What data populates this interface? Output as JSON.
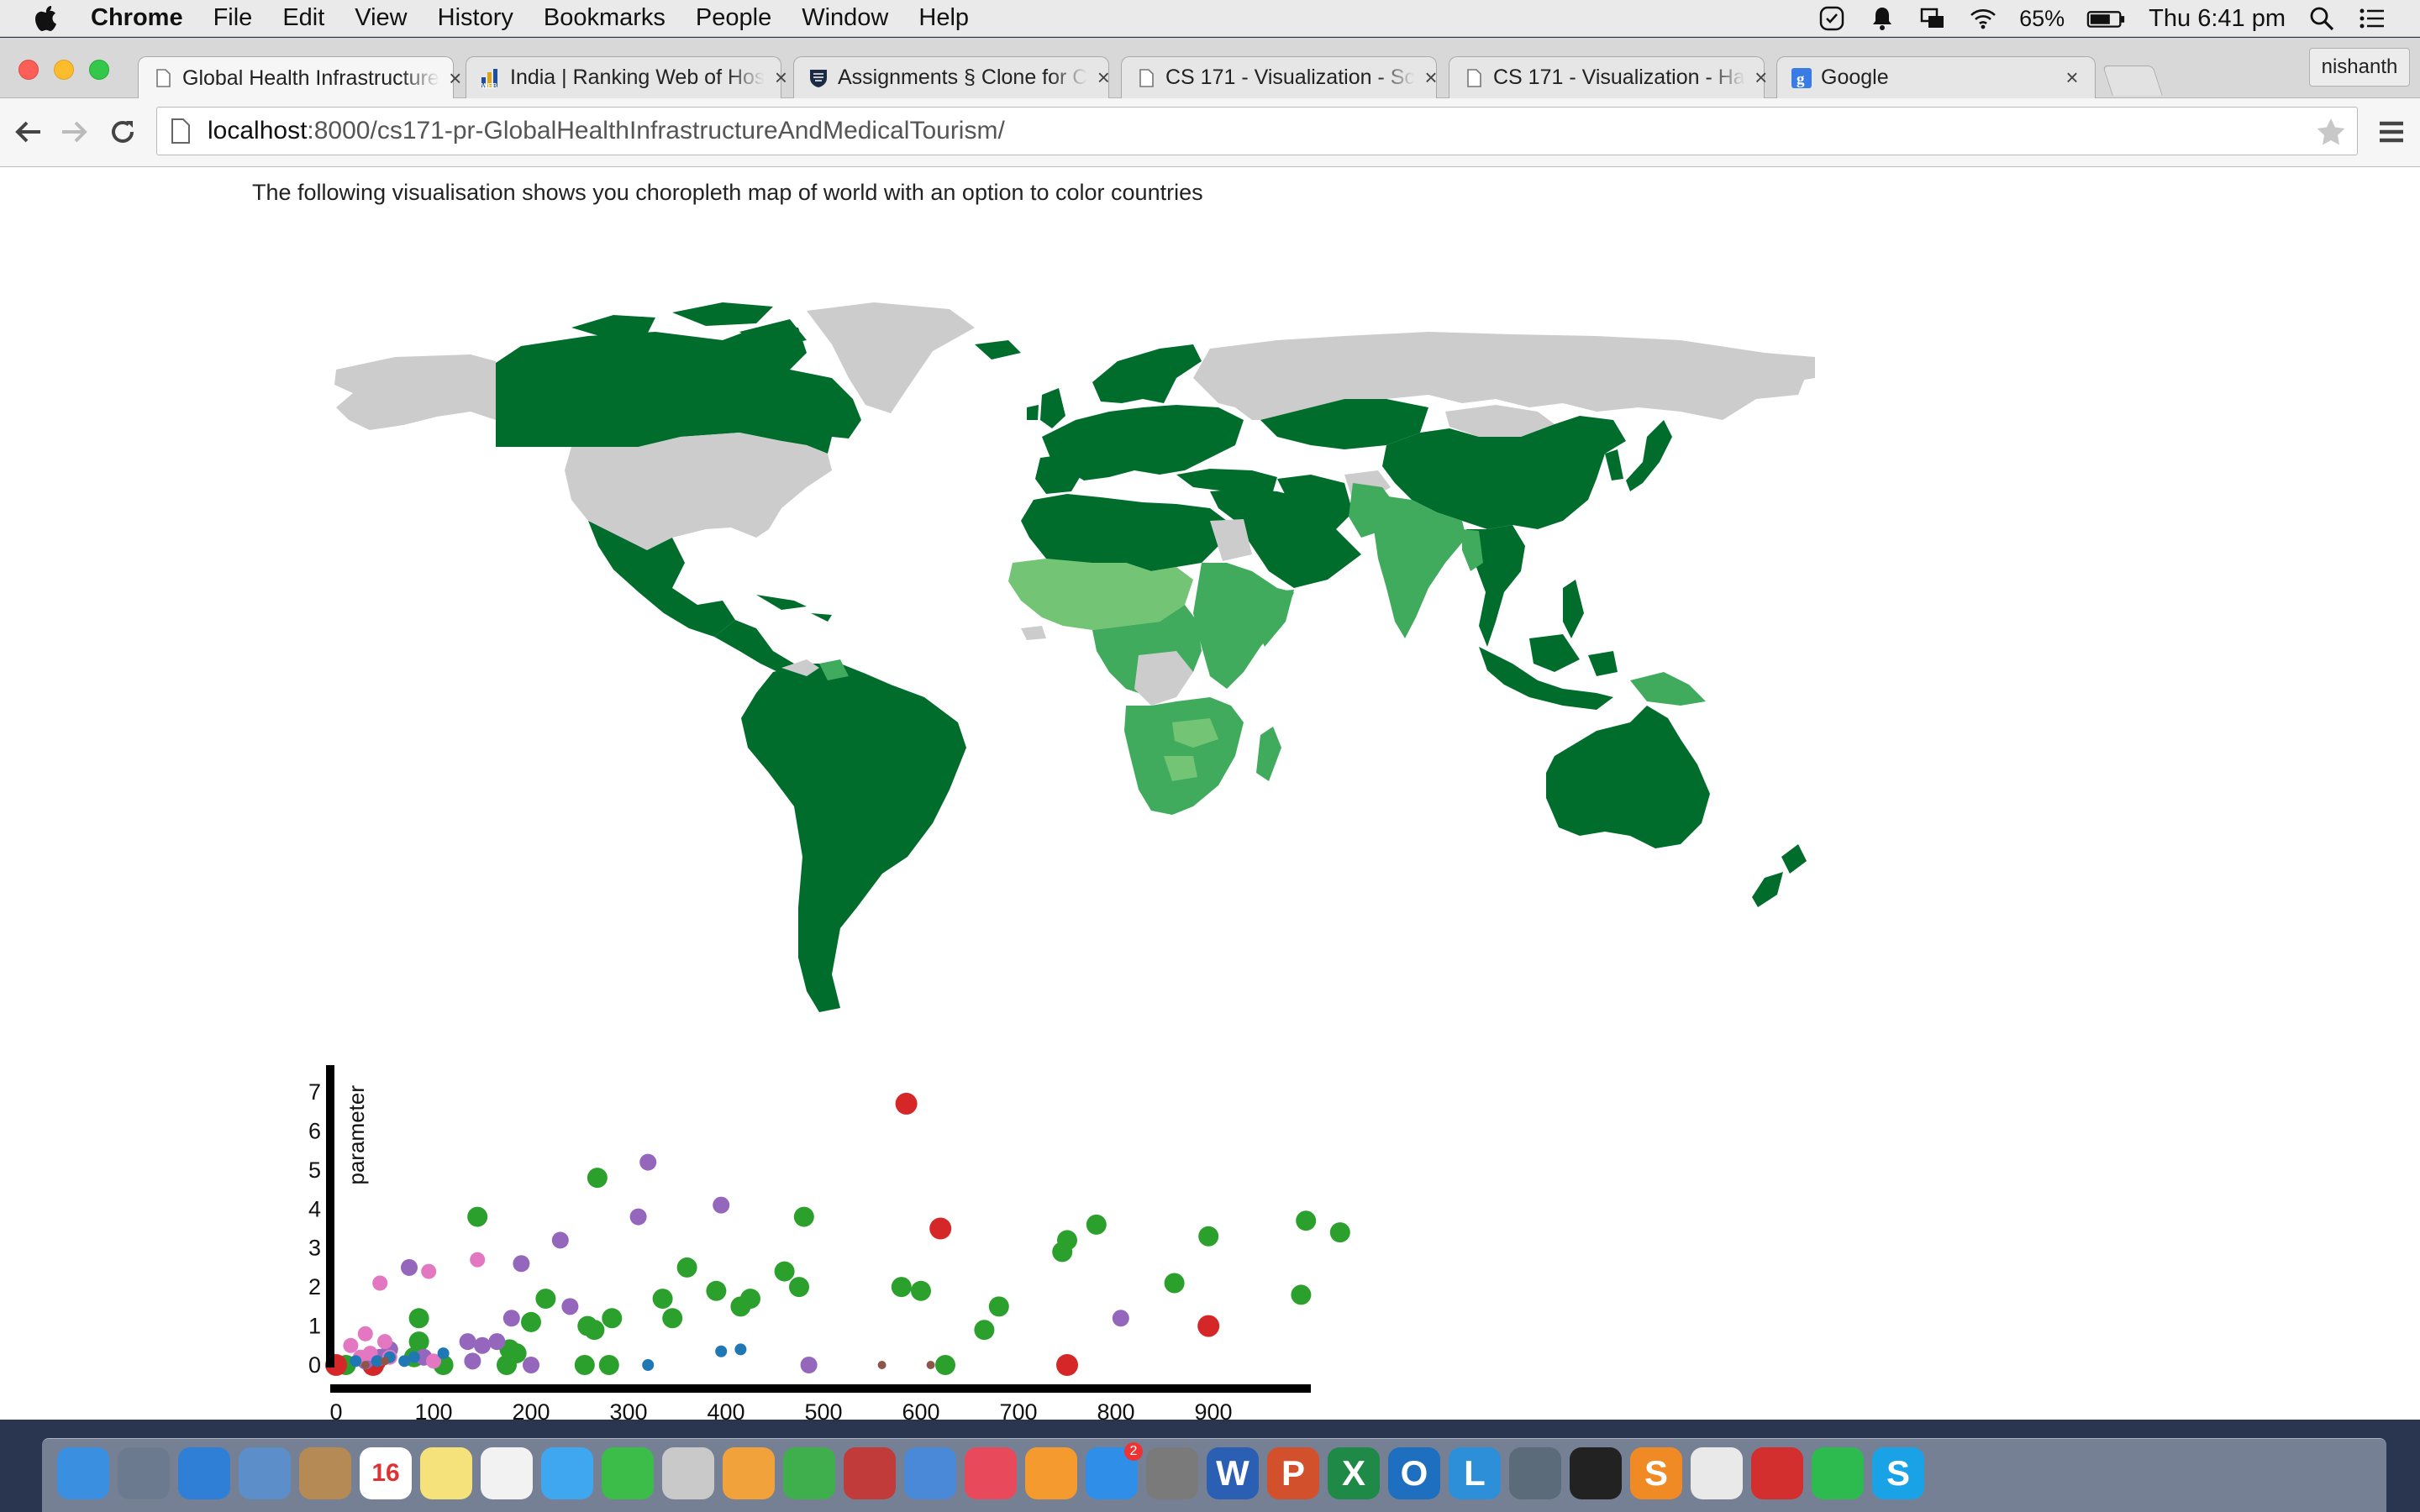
{
  "menubar": {
    "items": [
      {
        "label": "Chrome",
        "bold": true
      },
      {
        "label": "File"
      },
      {
        "label": "Edit"
      },
      {
        "label": "View"
      },
      {
        "label": "History"
      },
      {
        "label": "Bookmarks"
      },
      {
        "label": "People"
      },
      {
        "label": "Window"
      },
      {
        "label": "Help"
      }
    ],
    "battery": "65%",
    "clock": "Thu 6:41 pm"
  },
  "browser": {
    "tabs": [
      {
        "label": "Global Health Infrastructure",
        "icon": "page-icon",
        "active": true
      },
      {
        "label": "India | Ranking Web of Hos",
        "icon": "webometrics-icon"
      },
      {
        "label": "Assignments § Clone for C",
        "icon": "harvard-shield-icon"
      },
      {
        "label": "CS 171 - Visualization - Sc",
        "icon": "page-icon"
      },
      {
        "label": "CS 171 - Visualization - Ha",
        "icon": "page-icon"
      },
      {
        "label": "Google",
        "icon": "google-icon"
      }
    ],
    "profile": "nishanth",
    "url_host": "localhost",
    "url_path": ":8000/cs171-pr-GlobalHealthInfrastructureAndMedicalTourism/"
  },
  "page": {
    "intro": "The following visualisation shows you choropleth map of world with an option to color countries"
  },
  "colors": {
    "map_dark": "#006d2c",
    "map_mid": "#41ab5d",
    "map_light": "#74c476",
    "map_nodata": "#cccccc",
    "green": "#2ca02c",
    "red": "#d62728",
    "purple": "#9467bd",
    "pink": "#e377c2",
    "blue": "#1f77b4",
    "brown": "#8c564b"
  },
  "chart_data": {
    "type": "scatter",
    "title": "",
    "xlabel": "",
    "ylabel": "parameter",
    "xlim": [
      0,
      1000
    ],
    "ylim": [
      0,
      7.5
    ],
    "x_ticks": [
      "0",
      "100",
      "200",
      "300",
      "400",
      "500",
      "600",
      "700",
      "800",
      "900"
    ],
    "y_ticks": [
      "0",
      "1",
      "2",
      "3",
      "4",
      "5",
      "6",
      "7"
    ],
    "series": [
      {
        "color": "green",
        "points": [
          [
            10,
            0
          ],
          [
            80,
            0.2
          ],
          [
            85,
            0.6
          ],
          [
            85,
            1.2
          ],
          [
            110,
            0
          ],
          [
            145,
            3.8
          ],
          [
            175,
            0
          ],
          [
            178,
            0.4
          ],
          [
            185,
            0.3
          ],
          [
            200,
            1.1
          ],
          [
            215,
            1.7
          ],
          [
            255,
            0
          ],
          [
            258,
            1.0
          ],
          [
            265,
            0.9
          ],
          [
            268,
            4.8
          ],
          [
            280,
            0
          ],
          [
            283,
            1.2
          ],
          [
            335,
            1.7
          ],
          [
            345,
            1.2
          ],
          [
            360,
            2.5
          ],
          [
            390,
            1.9
          ],
          [
            415,
            1.5
          ],
          [
            425,
            1.7
          ],
          [
            460,
            2.4
          ],
          [
            475,
            2.0
          ],
          [
            480,
            3.8
          ],
          [
            580,
            2.0
          ],
          [
            600,
            1.9
          ],
          [
            625,
            0
          ],
          [
            665,
            0.9
          ],
          [
            680,
            1.5
          ],
          [
            745,
            2.9
          ],
          [
            750,
            3.2
          ],
          [
            780,
            3.6
          ],
          [
            860,
            2.1
          ],
          [
            895,
            3.3
          ],
          [
            990,
            1.8
          ],
          [
            995,
            3.7
          ],
          [
            1030,
            3.4
          ]
        ]
      },
      {
        "color": "red",
        "points": [
          [
            0,
            0
          ],
          [
            38,
            0
          ],
          [
            40,
            0.1
          ],
          [
            585,
            6.7
          ],
          [
            620,
            3.5
          ],
          [
            750,
            0
          ],
          [
            895,
            1.0
          ]
        ]
      },
      {
        "color": "purple",
        "points": [
          [
            30,
            0.1
          ],
          [
            45,
            0.2
          ],
          [
            55,
            0.4
          ],
          [
            75,
            2.5
          ],
          [
            90,
            0.2
          ],
          [
            135,
            0.6
          ],
          [
            140,
            0.1
          ],
          [
            150,
            0.5
          ],
          [
            165,
            0.6
          ],
          [
            180,
            1.2
          ],
          [
            190,
            2.6
          ],
          [
            200,
            0
          ],
          [
            230,
            3.2
          ],
          [
            240,
            1.5
          ],
          [
            310,
            3.8
          ],
          [
            320,
            5.2
          ],
          [
            395,
            4.1
          ],
          [
            485,
            0
          ],
          [
            805,
            1.2
          ]
        ]
      },
      {
        "color": "pink",
        "points": [
          [
            15,
            0.5
          ],
          [
            25,
            0.2
          ],
          [
            30,
            0.8
          ],
          [
            35,
            0.3
          ],
          [
            45,
            2.1
          ],
          [
            50,
            0.6
          ],
          [
            55,
            0.2
          ],
          [
            95,
            2.4
          ],
          [
            100,
            0.1
          ],
          [
            145,
            2.7
          ]
        ]
      },
      {
        "color": "blue",
        "points": [
          [
            20,
            0.1
          ],
          [
            42,
            0.1
          ],
          [
            55,
            0.2
          ],
          [
            70,
            0.1
          ],
          [
            80,
            0.2
          ],
          [
            110,
            0.3
          ],
          [
            320,
            0
          ],
          [
            415,
            0.4
          ],
          [
            395,
            0.35
          ]
        ]
      },
      {
        "color": "brown",
        "points": [
          [
            30,
            0
          ],
          [
            50,
            0.1
          ],
          [
            560,
            0
          ],
          [
            610,
            0
          ]
        ]
      }
    ]
  },
  "dock": {
    "apps": [
      {
        "name": "finder-icon"
      },
      {
        "name": "launchpad-icon"
      },
      {
        "name": "safari-icon"
      },
      {
        "name": "mail-icon"
      },
      {
        "name": "contacts-icon"
      },
      {
        "name": "calendar-icon",
        "text": "16"
      },
      {
        "name": "notes-icon"
      },
      {
        "name": "reminders-icon"
      },
      {
        "name": "messages-icon"
      },
      {
        "name": "facetime-icon"
      },
      {
        "name": "photos-icon"
      },
      {
        "name": "pages-icon"
      },
      {
        "name": "numbers-icon"
      },
      {
        "name": "photobooth-icon"
      },
      {
        "name": "keynote-icon"
      },
      {
        "name": "itunes-icon"
      },
      {
        "name": "ibooks-icon"
      },
      {
        "name": "appstore-icon",
        "badge": "2"
      },
      {
        "name": "system-preferences-icon"
      },
      {
        "name": "word-icon",
        "text": "W"
      },
      {
        "name": "powerpoint-icon",
        "text": "P"
      },
      {
        "name": "excel-icon",
        "text": "X"
      },
      {
        "name": "outlook-icon",
        "text": "O"
      },
      {
        "name": "lync-icon",
        "text": "L"
      },
      {
        "name": "network-icon"
      },
      {
        "name": "terminal-icon"
      },
      {
        "name": "sublime-icon",
        "text": "S"
      },
      {
        "name": "chrome-icon"
      },
      {
        "name": "acrobat-icon"
      },
      {
        "name": "evernote-icon"
      },
      {
        "name": "skype-icon",
        "text": "S"
      }
    ]
  }
}
